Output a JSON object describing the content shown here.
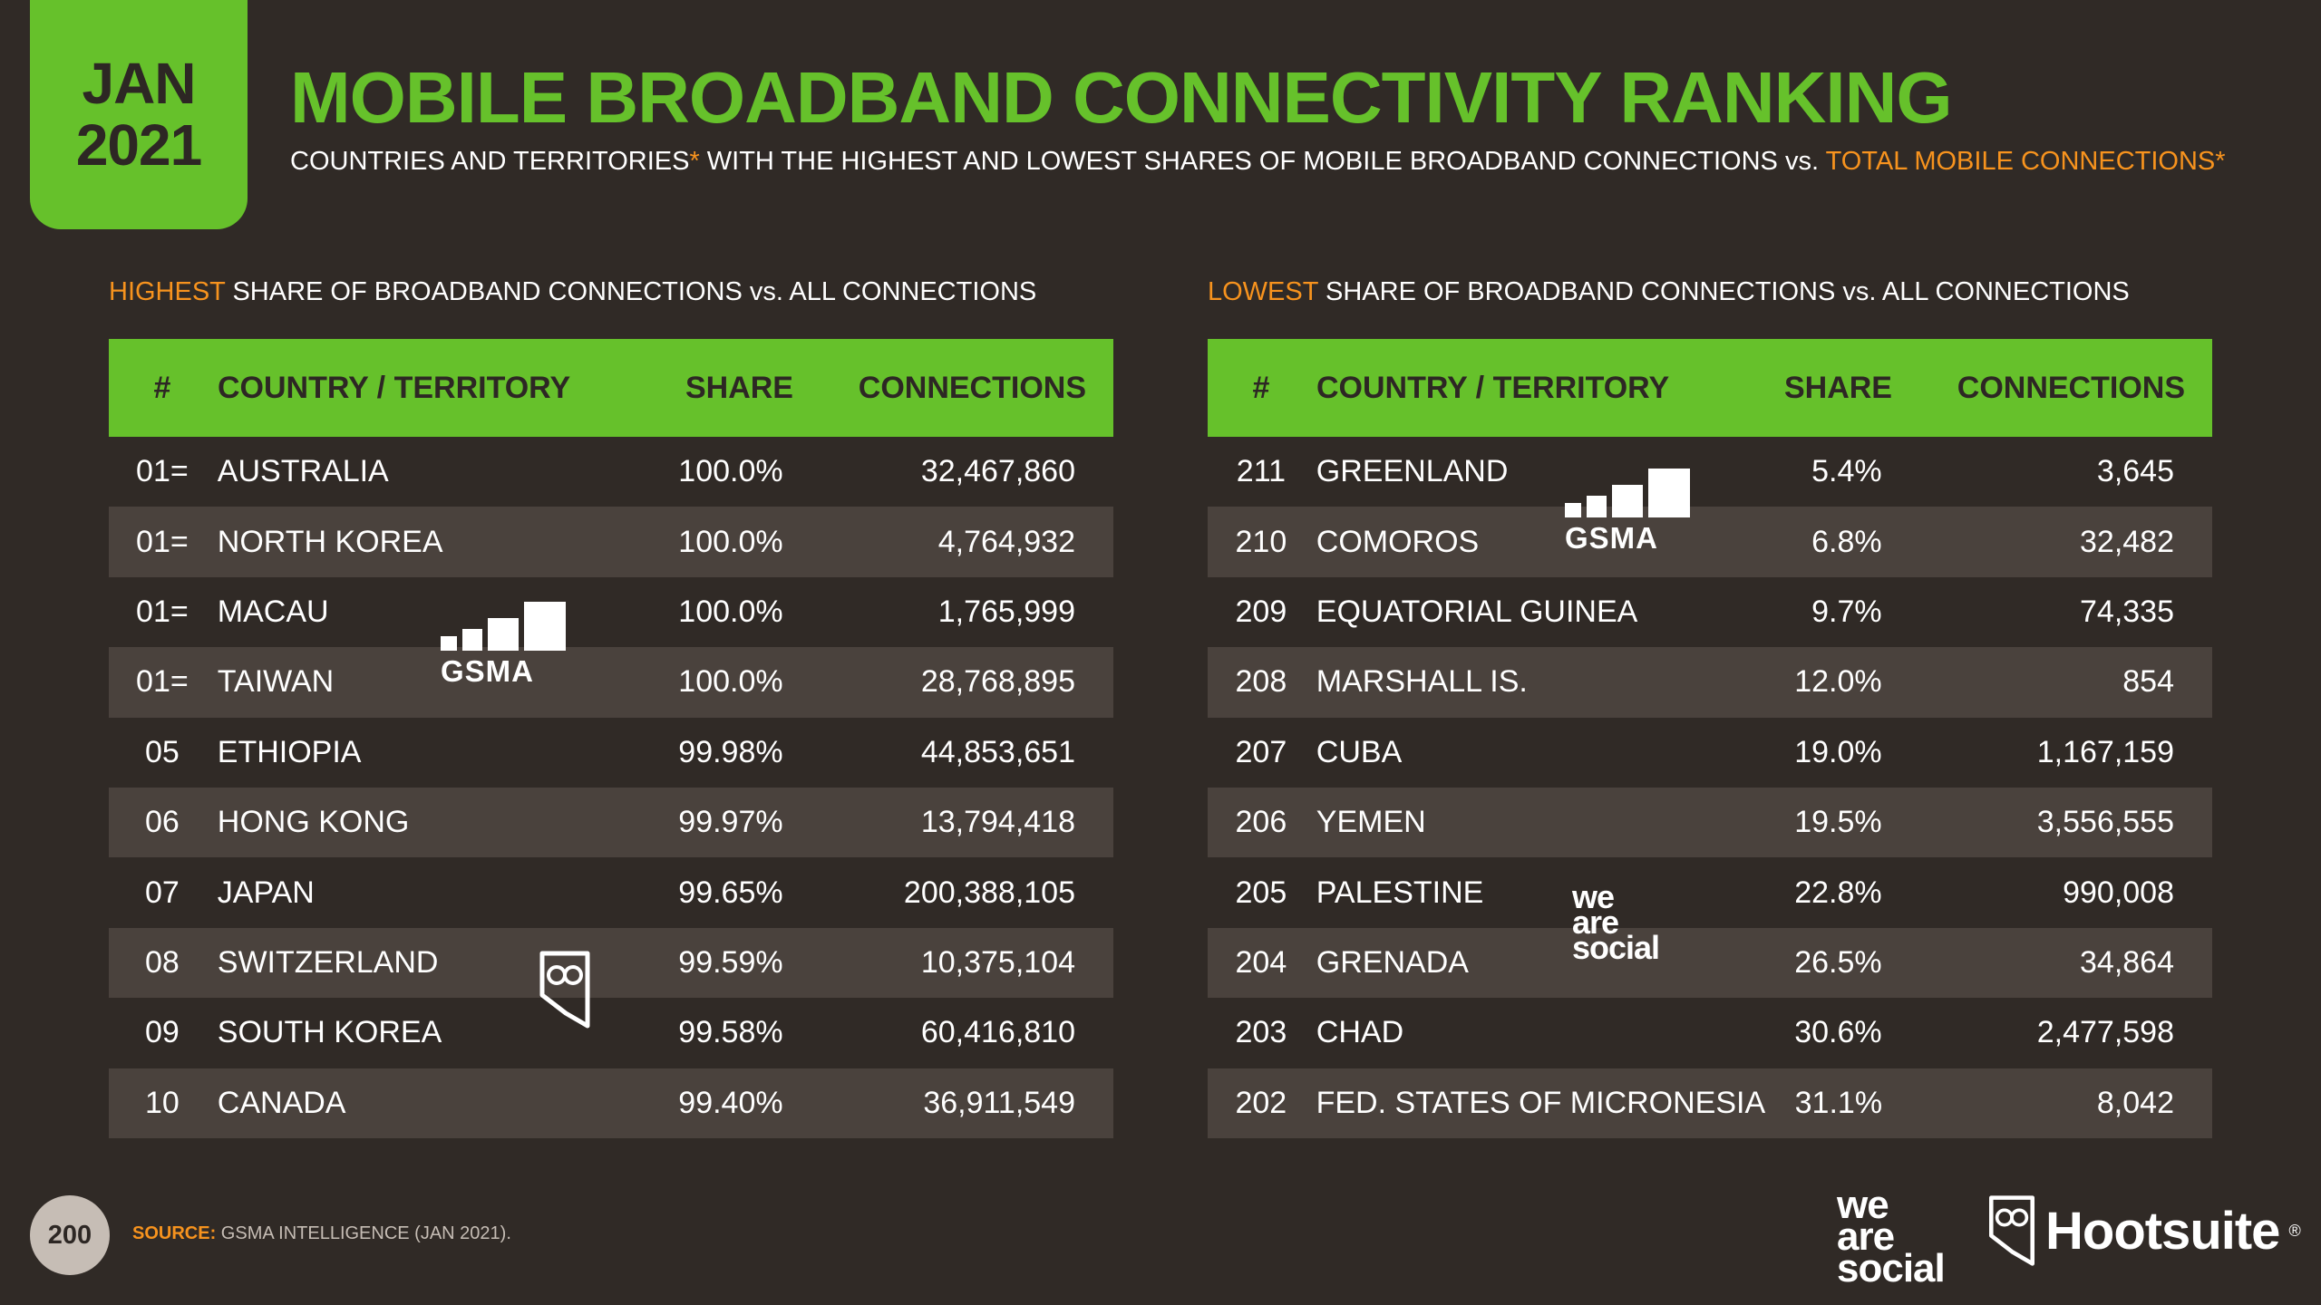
{
  "badge": {
    "month": "JAN",
    "year": "2021"
  },
  "title": "MOBILE BROADBAND CONNECTIVITY RANKING",
  "subtitle": {
    "part1": "COUNTRIES AND TERRITORIES",
    "star": "*",
    "part2": " WITH THE HIGHEST AND LOWEST SHARES OF MOBILE BROADBAND CONNECTIONS vs. ",
    "accent": "TOTAL MOBILE CONNECTIONS*"
  },
  "columns": {
    "rank": "#",
    "country": "COUNTRY / TERRITORY",
    "share": "SHARE",
    "connections": "CONNECTIONS"
  },
  "highest": {
    "heading_accent": "HIGHEST",
    "heading_rest": " SHARE OF BROADBAND CONNECTIONS vs. ALL CONNECTIONS",
    "rows": [
      {
        "rank": "01=",
        "country": "AUSTRALIA",
        "share": "100.0%",
        "connections": "32,467,860"
      },
      {
        "rank": "01=",
        "country": "NORTH KOREA",
        "share": "100.0%",
        "connections": "4,764,932"
      },
      {
        "rank": "01=",
        "country": "MACAU",
        "share": "100.0%",
        "connections": "1,765,999"
      },
      {
        "rank": "01=",
        "country": "TAIWAN",
        "share": "100.0%",
        "connections": "28,768,895"
      },
      {
        "rank": "05",
        "country": "ETHIOPIA",
        "share": "99.98%",
        "connections": "44,853,651"
      },
      {
        "rank": "06",
        "country": "HONG KONG",
        "share": "99.97%",
        "connections": "13,794,418"
      },
      {
        "rank": "07",
        "country": "JAPAN",
        "share": "99.65%",
        "connections": "200,388,105"
      },
      {
        "rank": "08",
        "country": "SWITZERLAND",
        "share": "99.59%",
        "connections": "10,375,104"
      },
      {
        "rank": "09",
        "country": "SOUTH KOREA",
        "share": "99.58%",
        "connections": "60,416,810"
      },
      {
        "rank": "10",
        "country": "CANADA",
        "share": "99.40%",
        "connections": "36,911,549"
      }
    ]
  },
  "lowest": {
    "heading_accent": "LOWEST",
    "heading_rest": " SHARE OF BROADBAND CONNECTIONS vs. ALL CONNECTIONS",
    "rows": [
      {
        "rank": "211",
        "country": "GREENLAND",
        "share": "5.4%",
        "connections": "3,645"
      },
      {
        "rank": "210",
        "country": "COMOROS",
        "share": "6.8%",
        "connections": "32,482"
      },
      {
        "rank": "209",
        "country": "EQUATORIAL GUINEA",
        "share": "9.7%",
        "connections": "74,335"
      },
      {
        "rank": "208",
        "country": "MARSHALL IS.",
        "share": "12.0%",
        "connections": "854"
      },
      {
        "rank": "207",
        "country": "CUBA",
        "share": "19.0%",
        "connections": "1,167,159"
      },
      {
        "rank": "206",
        "country": "YEMEN",
        "share": "19.5%",
        "connections": "3,556,555"
      },
      {
        "rank": "205",
        "country": "PALESTINE",
        "share": "22.8%",
        "connections": "990,008"
      },
      {
        "rank": "204",
        "country": "GRENADA",
        "share": "26.5%",
        "connections": "34,864"
      },
      {
        "rank": "203",
        "country": "CHAD",
        "share": "30.6%",
        "connections": "2,477,598"
      },
      {
        "rank": "202",
        "country": "FED. STATES OF MICRONESIA",
        "share": "31.1%",
        "connections": "8,042"
      }
    ]
  },
  "watermarks": {
    "gsma": "GSMA",
    "was_1": "we",
    "was_2": "are",
    "was_3": "social"
  },
  "footer": {
    "page": "200",
    "source_label": "SOURCE:",
    "source_text": " GSMA INTELLIGENCE (JAN 2021).",
    "brand_was_1": "we",
    "brand_was_2": "are",
    "brand_was_3": "social",
    "brand_hootsuite": "Hootsuite",
    "brand_reg": "®"
  },
  "icons": {
    "owl": "owl-logo-icon",
    "bars": "signal-bars-icon"
  },
  "colors": {
    "accent_green": "#66c12b",
    "accent_orange": "#f7931e",
    "background": "#302a26",
    "row_alt": "#4a423d"
  }
}
